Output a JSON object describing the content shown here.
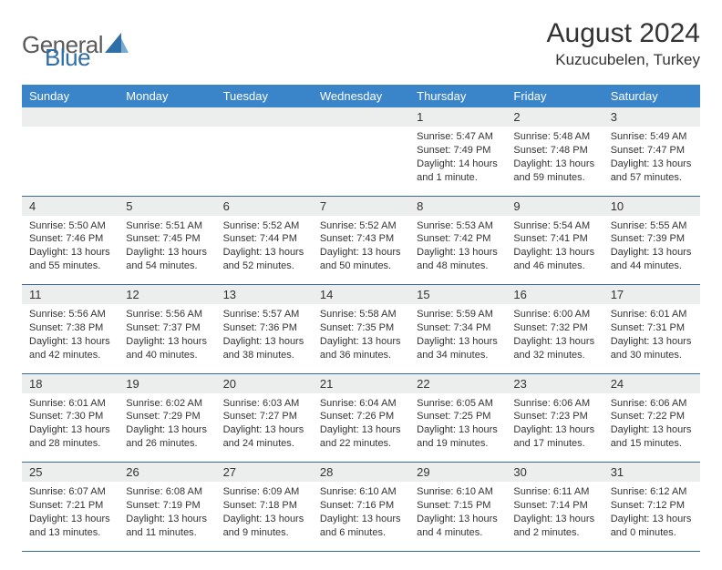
{
  "logo": {
    "text_general": "General",
    "text_blue": "Blue",
    "color_general": "#6a6a6a",
    "color_blue": "#2f6fa8",
    "triangle_color": "#2f6fa8"
  },
  "header": {
    "month_title": "August 2024",
    "location": "Kuzucubelen, Turkey"
  },
  "colors": {
    "header_bg": "#3a85c9",
    "header_text": "#ffffff",
    "daynum_bg": "#eceded",
    "text": "#333333",
    "rule": "#3a6a9a"
  },
  "day_names": [
    "Sunday",
    "Monday",
    "Tuesday",
    "Wednesday",
    "Thursday",
    "Friday",
    "Saturday"
  ],
  "weeks": [
    {
      "nums": [
        "",
        "",
        "",
        "",
        "1",
        "2",
        "3"
      ],
      "cells": [
        "",
        "",
        "",
        "",
        "Sunrise: 5:47 AM\nSunset: 7:49 PM\nDaylight: 14 hours and 1 minute.",
        "Sunrise: 5:48 AM\nSunset: 7:48 PM\nDaylight: 13 hours and 59 minutes.",
        "Sunrise: 5:49 AM\nSunset: 7:47 PM\nDaylight: 13 hours and 57 minutes."
      ]
    },
    {
      "nums": [
        "4",
        "5",
        "6",
        "7",
        "8",
        "9",
        "10"
      ],
      "cells": [
        "Sunrise: 5:50 AM\nSunset: 7:46 PM\nDaylight: 13 hours and 55 minutes.",
        "Sunrise: 5:51 AM\nSunset: 7:45 PM\nDaylight: 13 hours and 54 minutes.",
        "Sunrise: 5:52 AM\nSunset: 7:44 PM\nDaylight: 13 hours and 52 minutes.",
        "Sunrise: 5:52 AM\nSunset: 7:43 PM\nDaylight: 13 hours and 50 minutes.",
        "Sunrise: 5:53 AM\nSunset: 7:42 PM\nDaylight: 13 hours and 48 minutes.",
        "Sunrise: 5:54 AM\nSunset: 7:41 PM\nDaylight: 13 hours and 46 minutes.",
        "Sunrise: 5:55 AM\nSunset: 7:39 PM\nDaylight: 13 hours and 44 minutes."
      ]
    },
    {
      "nums": [
        "11",
        "12",
        "13",
        "14",
        "15",
        "16",
        "17"
      ],
      "cells": [
        "Sunrise: 5:56 AM\nSunset: 7:38 PM\nDaylight: 13 hours and 42 minutes.",
        "Sunrise: 5:56 AM\nSunset: 7:37 PM\nDaylight: 13 hours and 40 minutes.",
        "Sunrise: 5:57 AM\nSunset: 7:36 PM\nDaylight: 13 hours and 38 minutes.",
        "Sunrise: 5:58 AM\nSunset: 7:35 PM\nDaylight: 13 hours and 36 minutes.",
        "Sunrise: 5:59 AM\nSunset: 7:34 PM\nDaylight: 13 hours and 34 minutes.",
        "Sunrise: 6:00 AM\nSunset: 7:32 PM\nDaylight: 13 hours and 32 minutes.",
        "Sunrise: 6:01 AM\nSunset: 7:31 PM\nDaylight: 13 hours and 30 minutes."
      ]
    },
    {
      "nums": [
        "18",
        "19",
        "20",
        "21",
        "22",
        "23",
        "24"
      ],
      "cells": [
        "Sunrise: 6:01 AM\nSunset: 7:30 PM\nDaylight: 13 hours and 28 minutes.",
        "Sunrise: 6:02 AM\nSunset: 7:29 PM\nDaylight: 13 hours and 26 minutes.",
        "Sunrise: 6:03 AM\nSunset: 7:27 PM\nDaylight: 13 hours and 24 minutes.",
        "Sunrise: 6:04 AM\nSunset: 7:26 PM\nDaylight: 13 hours and 22 minutes.",
        "Sunrise: 6:05 AM\nSunset: 7:25 PM\nDaylight: 13 hours and 19 minutes.",
        "Sunrise: 6:06 AM\nSunset: 7:23 PM\nDaylight: 13 hours and 17 minutes.",
        "Sunrise: 6:06 AM\nSunset: 7:22 PM\nDaylight: 13 hours and 15 minutes."
      ]
    },
    {
      "nums": [
        "25",
        "26",
        "27",
        "28",
        "29",
        "30",
        "31"
      ],
      "cells": [
        "Sunrise: 6:07 AM\nSunset: 7:21 PM\nDaylight: 13 hours and 13 minutes.",
        "Sunrise: 6:08 AM\nSunset: 7:19 PM\nDaylight: 13 hours and 11 minutes.",
        "Sunrise: 6:09 AM\nSunset: 7:18 PM\nDaylight: 13 hours and 9 minutes.",
        "Sunrise: 6:10 AM\nSunset: 7:16 PM\nDaylight: 13 hours and 6 minutes.",
        "Sunrise: 6:10 AM\nSunset: 7:15 PM\nDaylight: 13 hours and 4 minutes.",
        "Sunrise: 6:11 AM\nSunset: 7:14 PM\nDaylight: 13 hours and 2 minutes.",
        "Sunrise: 6:12 AM\nSunset: 7:12 PM\nDaylight: 13 hours and 0 minutes."
      ]
    }
  ]
}
